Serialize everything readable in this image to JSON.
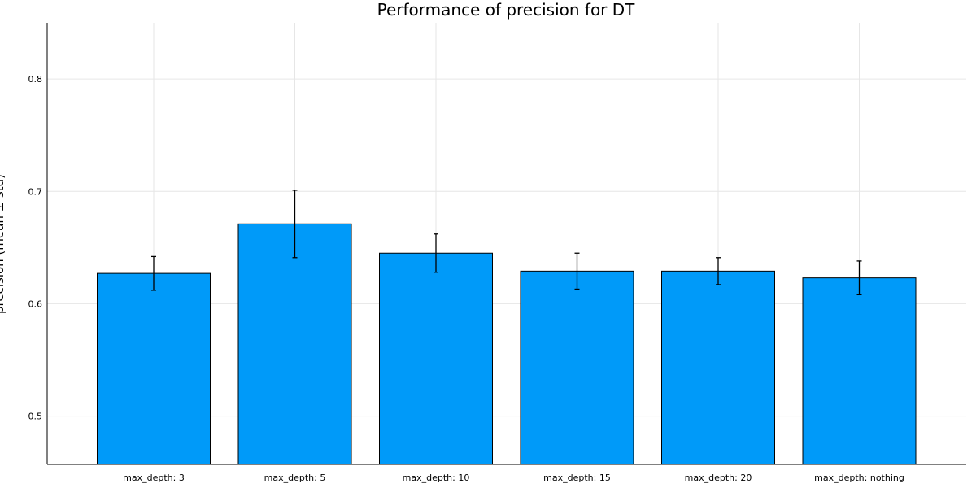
{
  "chart_data": {
    "type": "bar",
    "title": "Performance of precision for DT",
    "xlabel": "",
    "ylabel": "precision (mean ± std)",
    "categories": [
      "max_depth: 3",
      "max_depth: 5",
      "max_depth: 10",
      "max_depth: 15",
      "max_depth: 20",
      "max_depth: nothing"
    ],
    "values": [
      0.627,
      0.671,
      0.645,
      0.629,
      0.629,
      0.623
    ],
    "errors": [
      0.015,
      0.03,
      0.017,
      0.016,
      0.012,
      0.015
    ],
    "ylim": [
      0.457,
      0.85
    ],
    "yticks": [
      0.5,
      0.6,
      0.7,
      0.8
    ],
    "ytick_labels": [
      "0.5",
      "0.6",
      "0.7",
      "0.8"
    ],
    "grid": true,
    "legend": "none",
    "colors": {
      "bar": "#009af9",
      "edge": "#000000",
      "grid": "#e6e6e6"
    }
  }
}
